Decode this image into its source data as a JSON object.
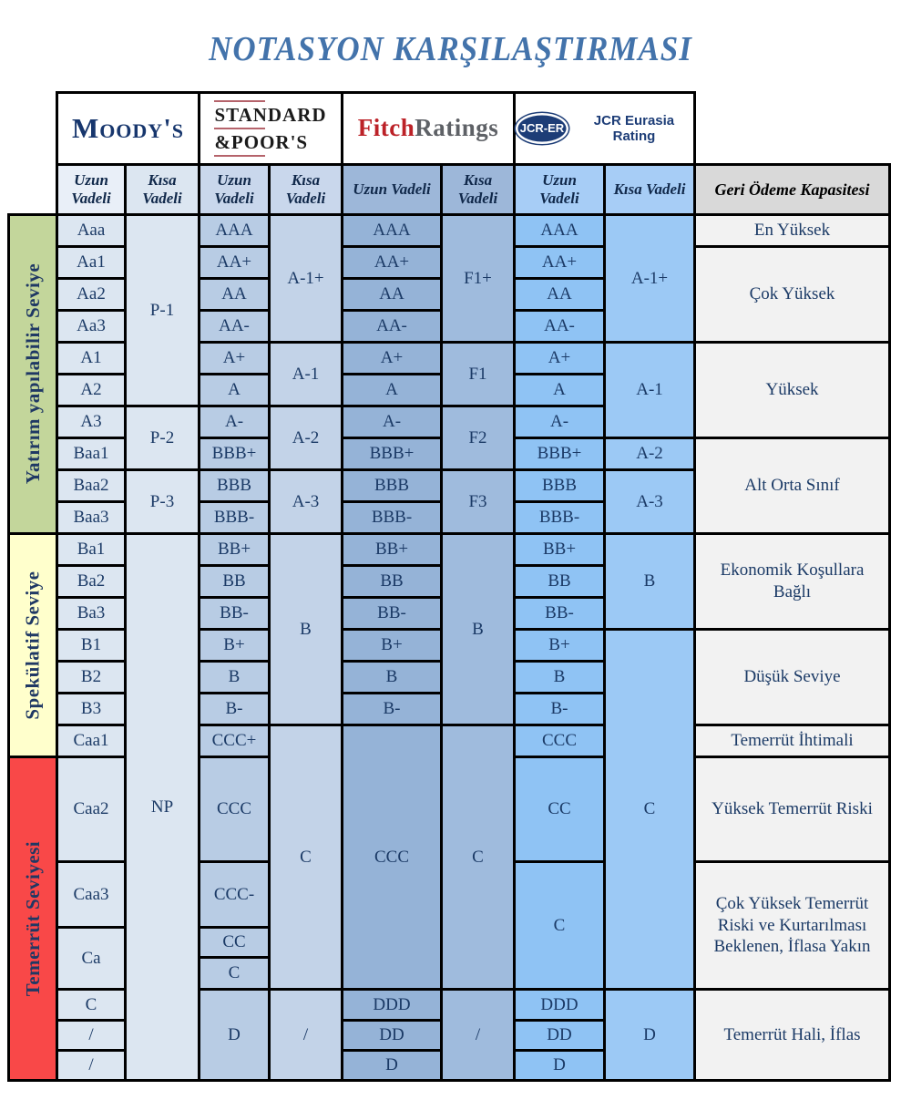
{
  "title": "NOTASYON KARŞILAŞTIRMASI",
  "colors": {
    "title_blue": "#4373ab",
    "cell_text_navy": "#1b3a66",
    "investment_green": "#c3d69b",
    "speculative_yellow": "#ffffcc",
    "default_red": "#f94848",
    "capacity_gray": "#f2f2f2",
    "moody_col": "#dce6f1",
    "sp_long_col": "#b8cce4",
    "sp_short_col": "#c3d3e8",
    "fitch_long_col": "#95b3d7",
    "fitch_short_col": "#9fbbdd",
    "jcr_long_col": "#8fc3f4",
    "jcr_short_col": "#9cc9f5",
    "sp_rule_red": "#b5636b",
    "fitch_red": "#bc2228",
    "jcr_navy": "#1d3d77"
  },
  "logos": {
    "moody": "Moody's",
    "sp_line1": "STANDARD",
    "sp_line2": "&POOR'S",
    "fitch_part1": "Fitch",
    "fitch_part2": "Ratings",
    "jcr_oval": "JCR-ER",
    "jcr_name": "JCR Eurasia Rating"
  },
  "table": {
    "header_cells": [
      {
        "c": "ml",
        "t": "Uzun Vadeli"
      },
      {
        "c": "ms",
        "t": "Kısa Vadeli"
      },
      {
        "c": "sl",
        "t": "Uzun Vadeli"
      },
      {
        "c": "ss",
        "t": "Kısa Vadeli"
      },
      {
        "c": "fl",
        "t": "Uzun Vadeli"
      },
      {
        "c": "fs",
        "t": "Kısa Vadeli"
      },
      {
        "c": "jl",
        "t": "Uzun Vadeli"
      },
      {
        "c": "js",
        "t": "Kısa Vadeli"
      },
      {
        "c": "cap",
        "t": "Geri Ödeme Kapasitesi"
      }
    ],
    "groups": [
      {
        "label": "Yatırım yapılabilir Seviye",
        "color": "#c3d69b",
        "r": 1,
        "s": 10
      },
      {
        "label": "Spekülatif Seviye",
        "color": "#ffffcc",
        "r": 11,
        "s": 7
      },
      {
        "label": "Temerrüt Seviyesi",
        "color": "#f94848",
        "r": 18,
        "s": 7
      }
    ],
    "cells": [
      {
        "c": "ml",
        "r": 1,
        "t": "Aaa"
      },
      {
        "c": "ml",
        "r": 2,
        "t": "Aa1"
      },
      {
        "c": "ml",
        "r": 3,
        "t": "Aa2"
      },
      {
        "c": "ml",
        "r": 4,
        "t": "Aa3"
      },
      {
        "c": "ml",
        "r": 5,
        "t": "A1"
      },
      {
        "c": "ml",
        "r": 6,
        "t": "A2"
      },
      {
        "c": "ml",
        "r": 7,
        "t": "A3"
      },
      {
        "c": "ml",
        "r": 8,
        "t": "Baa1"
      },
      {
        "c": "ml",
        "r": 9,
        "t": "Baa2"
      },
      {
        "c": "ml",
        "r": 10,
        "t": "Baa3"
      },
      {
        "c": "ml",
        "r": 11,
        "t": "Ba1"
      },
      {
        "c": "ml",
        "r": 12,
        "t": "Ba2"
      },
      {
        "c": "ml",
        "r": 13,
        "t": "Ba3"
      },
      {
        "c": "ml",
        "r": 14,
        "t": "B1"
      },
      {
        "c": "ml",
        "r": 15,
        "t": "B2"
      },
      {
        "c": "ml",
        "r": 16,
        "t": "B3"
      },
      {
        "c": "ml",
        "r": 17,
        "t": "Caa1"
      },
      {
        "c": "ml",
        "r": 18,
        "t": "Caa2"
      },
      {
        "c": "ml",
        "r": 19,
        "t": "Caa3"
      },
      {
        "c": "ml",
        "r": 20,
        "s": 2,
        "t": "Ca"
      },
      {
        "c": "ml",
        "r": 22,
        "t": "C"
      },
      {
        "c": "ml",
        "r": 23,
        "t": "/"
      },
      {
        "c": "ml",
        "r": 24,
        "t": "/"
      },
      {
        "c": "ms",
        "r": 1,
        "s": 6,
        "t": "P-1"
      },
      {
        "c": "ms",
        "r": 7,
        "s": 2,
        "t": "P-2"
      },
      {
        "c": "ms",
        "r": 9,
        "s": 2,
        "t": "P-3"
      },
      {
        "c": "ms",
        "r": 11,
        "s": 14,
        "t": "NP"
      },
      {
        "c": "sl",
        "r": 1,
        "t": "AAA"
      },
      {
        "c": "sl",
        "r": 2,
        "t": "AA+"
      },
      {
        "c": "sl",
        "r": 3,
        "t": "AA"
      },
      {
        "c": "sl",
        "r": 4,
        "t": "AA-"
      },
      {
        "c": "sl",
        "r": 5,
        "t": "A+"
      },
      {
        "c": "sl",
        "r": 6,
        "t": "A"
      },
      {
        "c": "sl",
        "r": 7,
        "t": "A-"
      },
      {
        "c": "sl",
        "r": 8,
        "t": "BBB+"
      },
      {
        "c": "sl",
        "r": 9,
        "t": "BBB"
      },
      {
        "c": "sl",
        "r": 10,
        "t": "BBB-"
      },
      {
        "c": "sl",
        "r": 11,
        "t": "BB+"
      },
      {
        "c": "sl",
        "r": 12,
        "t": "BB"
      },
      {
        "c": "sl",
        "r": 13,
        "t": "BB-"
      },
      {
        "c": "sl",
        "r": 14,
        "t": "B+"
      },
      {
        "c": "sl",
        "r": 15,
        "t": "B"
      },
      {
        "c": "sl",
        "r": 16,
        "t": "B-"
      },
      {
        "c": "sl",
        "r": 17,
        "t": "CCC+"
      },
      {
        "c": "sl",
        "r": 18,
        "t": "CCC"
      },
      {
        "c": "sl",
        "r": 19,
        "t": "CCC-"
      },
      {
        "c": "sl",
        "r": 20,
        "t": "CC"
      },
      {
        "c": "sl",
        "r": 21,
        "t": "C"
      },
      {
        "c": "sl",
        "r": 22,
        "s": 3,
        "t": "D"
      },
      {
        "c": "ss",
        "r": 1,
        "s": 4,
        "t": "A-1+"
      },
      {
        "c": "ss",
        "r": 5,
        "s": 2,
        "t": "A-1"
      },
      {
        "c": "ss",
        "r": 7,
        "s": 2,
        "t": "A-2"
      },
      {
        "c": "ss",
        "r": 9,
        "s": 2,
        "t": "A-3"
      },
      {
        "c": "ss",
        "r": 11,
        "s": 6,
        "t": "B"
      },
      {
        "c": "ss",
        "r": 17,
        "s": 5,
        "t": "C"
      },
      {
        "c": "ss",
        "r": 22,
        "s": 3,
        "t": "/"
      },
      {
        "c": "fl",
        "r": 1,
        "t": "AAA"
      },
      {
        "c": "fl",
        "r": 2,
        "t": "AA+"
      },
      {
        "c": "fl",
        "r": 3,
        "t": "AA"
      },
      {
        "c": "fl",
        "r": 4,
        "t": "AA-"
      },
      {
        "c": "fl",
        "r": 5,
        "t": "A+"
      },
      {
        "c": "fl",
        "r": 6,
        "t": "A"
      },
      {
        "c": "fl",
        "r": 7,
        "t": "A-"
      },
      {
        "c": "fl",
        "r": 8,
        "t": "BBB+"
      },
      {
        "c": "fl",
        "r": 9,
        "t": "BBB"
      },
      {
        "c": "fl",
        "r": 10,
        "t": "BBB-"
      },
      {
        "c": "fl",
        "r": 11,
        "t": "BB+"
      },
      {
        "c": "fl",
        "r": 12,
        "t": "BB"
      },
      {
        "c": "fl",
        "r": 13,
        "t": "BB-"
      },
      {
        "c": "fl",
        "r": 14,
        "t": "B+"
      },
      {
        "c": "fl",
        "r": 15,
        "t": "B"
      },
      {
        "c": "fl",
        "r": 16,
        "t": "B-"
      },
      {
        "c": "fl",
        "r": 17,
        "s": 5,
        "t": "CCC"
      },
      {
        "c": "fl",
        "r": 22,
        "t": "DDD"
      },
      {
        "c": "fl",
        "r": 23,
        "t": "DD"
      },
      {
        "c": "fl",
        "r": 24,
        "t": "D"
      },
      {
        "c": "fs",
        "r": 1,
        "s": 4,
        "t": "F1+"
      },
      {
        "c": "fs",
        "r": 5,
        "s": 2,
        "t": "F1"
      },
      {
        "c": "fs",
        "r": 7,
        "s": 2,
        "t": "F2"
      },
      {
        "c": "fs",
        "r": 9,
        "s": 2,
        "t": "F3"
      },
      {
        "c": "fs",
        "r": 11,
        "s": 6,
        "t": "B"
      },
      {
        "c": "fs",
        "r": 17,
        "s": 5,
        "t": "C"
      },
      {
        "c": "fs",
        "r": 22,
        "s": 3,
        "t": "/"
      },
      {
        "c": "jl",
        "r": 1,
        "t": "AAA"
      },
      {
        "c": "jl",
        "r": 2,
        "t": "AA+"
      },
      {
        "c": "jl",
        "r": 3,
        "t": "AA"
      },
      {
        "c": "jl",
        "r": 4,
        "t": "AA-"
      },
      {
        "c": "jl",
        "r": 5,
        "t": "A+"
      },
      {
        "c": "jl",
        "r": 6,
        "t": "A"
      },
      {
        "c": "jl",
        "r": 7,
        "t": "A-"
      },
      {
        "c": "jl",
        "r": 8,
        "t": "BBB+"
      },
      {
        "c": "jl",
        "r": 9,
        "t": "BBB"
      },
      {
        "c": "jl",
        "r": 10,
        "t": "BBB-"
      },
      {
        "c": "jl",
        "r": 11,
        "t": "BB+"
      },
      {
        "c": "jl",
        "r": 12,
        "t": "BB"
      },
      {
        "c": "jl",
        "r": 13,
        "t": "BB-"
      },
      {
        "c": "jl",
        "r": 14,
        "t": "B+"
      },
      {
        "c": "jl",
        "r": 15,
        "t": "B"
      },
      {
        "c": "jl",
        "r": 16,
        "t": "B-"
      },
      {
        "c": "jl",
        "r": 17,
        "t": "CCC"
      },
      {
        "c": "jl",
        "r": 18,
        "t": "CC"
      },
      {
        "c": "jl",
        "r": 19,
        "s": 3,
        "t": "C"
      },
      {
        "c": "jl",
        "r": 22,
        "t": "DDD"
      },
      {
        "c": "jl",
        "r": 23,
        "t": "DD"
      },
      {
        "c": "jl",
        "r": 24,
        "t": "D"
      },
      {
        "c": "js",
        "r": 1,
        "s": 4,
        "t": "A-1+"
      },
      {
        "c": "js",
        "r": 5,
        "s": 3,
        "t": "A-1"
      },
      {
        "c": "js",
        "r": 8,
        "t": "A-2"
      },
      {
        "c": "js",
        "r": 9,
        "s": 2,
        "t": "A-3"
      },
      {
        "c": "js",
        "r": 11,
        "s": 3,
        "t": "B"
      },
      {
        "c": "js",
        "r": 14,
        "s": 8,
        "t": "C"
      },
      {
        "c": "js",
        "r": 22,
        "s": 3,
        "t": "D"
      },
      {
        "c": "cap",
        "r": 1,
        "t": "En Yüksek"
      },
      {
        "c": "cap",
        "r": 2,
        "s": 3,
        "t": "Çok Yüksek"
      },
      {
        "c": "cap",
        "r": 5,
        "s": 3,
        "t": "Yüksek"
      },
      {
        "c": "cap",
        "r": 8,
        "s": 3,
        "t": "Alt Orta Sınıf"
      },
      {
        "c": "cap",
        "r": 11,
        "s": 3,
        "t": "Ekonomik Koşullara Bağlı"
      },
      {
        "c": "cap",
        "r": 14,
        "s": 3,
        "t": "Düşük Seviye"
      },
      {
        "c": "cap",
        "r": 17,
        "t": "Temerrüt İhtimali"
      },
      {
        "c": "cap",
        "r": 18,
        "t": "Yüksek Temerrüt Riski"
      },
      {
        "c": "cap",
        "r": 19,
        "s": 3,
        "t": "Çok Yüksek Temerrüt Riski ve Kurtarılması Beklenen, İflasa Yakın"
      },
      {
        "c": "cap",
        "r": 22,
        "s": 3,
        "t": "Temerrüt Hali, İflas"
      }
    ]
  }
}
